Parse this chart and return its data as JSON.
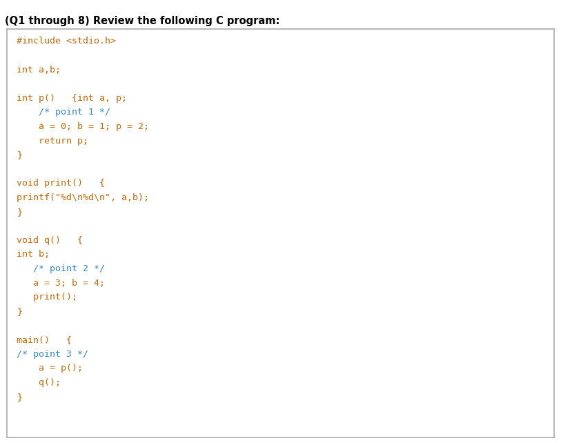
{
  "title": "(Q1 through 8) Review the following C program:",
  "title_color": "#000000",
  "title_fontsize": 10.5,
  "bg_color": "#ffffff",
  "border_color": "#aaaaaa",
  "code_font_size": 9.5,
  "orange": "#cc6600",
  "blue": "#3388cc",
  "code_lines": [
    {
      "text": "#include <stdio.h>",
      "indent": 0,
      "color": "orange"
    },
    {
      "text": "",
      "indent": 0,
      "color": "orange"
    },
    {
      "text": "int a,b;",
      "indent": 0,
      "color": "orange"
    },
    {
      "text": "",
      "indent": 0,
      "color": "orange"
    },
    {
      "text": "int p()   {int a, p;",
      "indent": 0,
      "color": "orange"
    },
    {
      "text": "    /* point 1 */",
      "indent": 0,
      "color": "blue"
    },
    {
      "text": "    a = 0; b = 1; p = 2;",
      "indent": 0,
      "color": "orange"
    },
    {
      "text": "    return p;",
      "indent": 0,
      "color": "orange"
    },
    {
      "text": "}",
      "indent": 0,
      "color": "orange"
    },
    {
      "text": "",
      "indent": 0,
      "color": "orange"
    },
    {
      "text": "void print()   {",
      "indent": 0,
      "color": "orange"
    },
    {
      "text": "printf(\"%d\\n%d\\n\", a,b);",
      "indent": 0,
      "color": "orange"
    },
    {
      "text": "}",
      "indent": 0,
      "color": "orange"
    },
    {
      "text": "",
      "indent": 0,
      "color": "orange"
    },
    {
      "text": "void q()   {",
      "indent": 0,
      "color": "orange"
    },
    {
      "text": "int b;",
      "indent": 0,
      "color": "orange"
    },
    {
      "text": "   /* point 2 */",
      "indent": 0,
      "color": "blue"
    },
    {
      "text": "   a = 3; b = 4;",
      "indent": 0,
      "color": "orange"
    },
    {
      "text": "   print();",
      "indent": 0,
      "color": "orange"
    },
    {
      "text": "}",
      "indent": 0,
      "color": "orange"
    },
    {
      "text": "",
      "indent": 0,
      "color": "orange"
    },
    {
      "text": "main()   {",
      "indent": 0,
      "color": "orange"
    },
    {
      "text": "/* point 3 */",
      "indent": 0,
      "color": "blue"
    },
    {
      "text": "    a = p();",
      "indent": 0,
      "color": "orange"
    },
    {
      "text": "    q();",
      "indent": 0,
      "color": "orange"
    },
    {
      "text": "}",
      "indent": 0,
      "color": "orange"
    }
  ],
  "fig_width": 8.13,
  "fig_height": 6.42
}
